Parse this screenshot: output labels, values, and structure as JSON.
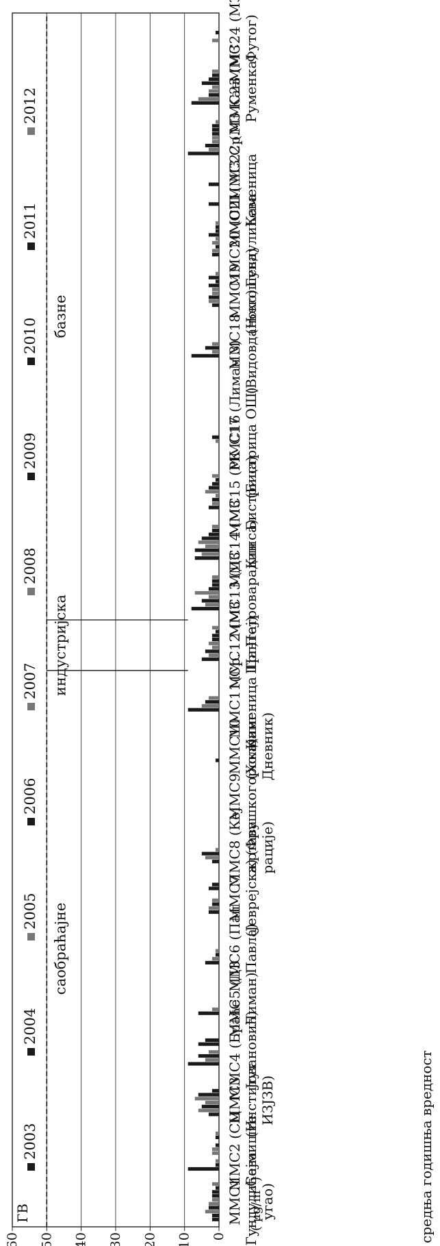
{
  "chart_data": {
    "type": "bar",
    "ylabel": "средња годишња вредност",
    "yunit": "( µg/m³ )",
    "ylim": [
      0,
      60
    ],
    "yticks": [
      0,
      10,
      20,
      30,
      40,
      50,
      60
    ],
    "grid": true,
    "legend_position": "top",
    "reference_line": {
      "label": "ГВ",
      "value": 50
    },
    "zones": [
      {
        "label": "саобраћајне",
        "from": 0,
        "to": 11
      },
      {
        "label": "индустријска",
        "from": 11,
        "to": 12
      },
      {
        "label": "базне",
        "from": 12,
        "to": 24
      }
    ],
    "categories": [
      "ММС1 (Гундулићева угао)",
      "ММС2 (СЦ Сајмиште",
      "ММС3 (Институт ИЗЈЗВ)",
      "ММС4 (Браће Јовановић)",
      "ММС5 (ДЗ Лиман)",
      "ММС6 (Пап Павла)",
      "ММС7 (Јеврејска)",
      "ММС8 (Кеј жртава рације)",
      "ММС9 (Фрушкогорска)",
      "ММС10 (Холдинг Дневник)",
      "ММС11(Ср. Каменица Трг)",
      "ММС12 (МЗ Шангај)",
      "ММС13 (ДЗ Петроварадин",
      "ММС14 (МЗ Клиса)",
      "ММС15 (РК Бистрица)",
      "ММС16 (Бистрица ОШ)",
      "С17 (Лиман 3)",
      "ММС18 (Видовданско)",
      "ММС19 (Његошева)",
      "ММС20 (ОШ Гундулићева",
      "ММС21( МЗ Ср. Каменица",
      "ММС22 (МЗ Кањ",
      "ММС23 (МЗ Руменка)",
      "ММС24 (МЗ Футог)"
    ],
    "series": [
      {
        "name": "2003",
        "color": "#1a1a1a",
        "values": [
          2,
          9,
          0,
          0,
          0,
          0,
          0,
          0,
          0,
          0,
          0,
          0,
          0,
          0,
          0,
          0,
          0,
          0,
          0,
          0,
          0,
          0,
          0,
          0
        ]
      },
      {
        "name": "2004",
        "color": "#1a1a1a",
        "values": [
          2,
          1,
          3,
          9,
          6,
          4,
          3,
          2,
          0,
          1,
          9,
          5,
          8,
          7,
          3,
          0,
          0,
          8,
          2,
          2,
          3,
          9,
          8,
          0
        ]
      },
      {
        "name": "2005",
        "color": "#777777",
        "values": [
          4,
          1,
          6,
          4,
          2,
          2,
          3,
          4,
          0,
          0,
          5,
          3,
          4,
          5,
          2,
          0,
          0,
          2,
          3,
          2,
          0,
          3,
          6,
          0
        ]
      },
      {
        "name": "2006",
        "color": "#1a1a1a",
        "values": [
          3,
          0,
          5,
          6,
          0,
          1,
          2,
          5,
          0,
          0,
          4,
          4,
          5,
          7,
          2,
          0,
          0,
          4,
          3,
          1,
          0,
          4,
          3,
          0
        ]
      },
      {
        "name": "2007",
        "color": "#777777",
        "values": [
          3,
          2,
          4,
          3,
          0,
          1,
          2,
          1,
          0,
          0,
          3,
          2,
          3,
          4,
          1,
          0,
          0,
          2,
          2,
          2,
          0,
          2,
          3,
          2
        ]
      },
      {
        "name": "2008",
        "color": "#777777",
        "values": [
          2,
          2,
          7,
          0,
          0,
          0,
          0,
          0,
          0,
          0,
          0,
          3,
          7,
          6,
          4,
          1,
          0,
          0,
          2,
          1,
          0,
          2,
          2,
          0
        ]
      },
      {
        "name": "2009",
        "color": "#1a1a1a",
        "values": [
          2,
          1,
          6,
          6,
          0,
          0,
          0,
          0,
          0,
          0,
          0,
          2,
          3,
          5,
          3,
          2,
          0,
          0,
          3,
          3,
          3,
          2,
          5,
          1
        ]
      },
      {
        "name": "2010",
        "color": "#1a1a1a",
        "values": [
          2,
          0,
          2,
          4,
          0,
          0,
          3,
          0,
          0,
          0,
          0,
          2,
          2,
          3,
          2,
          0,
          0,
          0,
          1,
          1,
          0,
          2,
          3,
          0
        ]
      },
      {
        "name": "2011",
        "color": "#1a1a1a",
        "values": [
          1,
          1,
          0,
          0,
          0,
          0,
          2,
          0,
          0,
          0,
          0,
          1,
          2,
          2,
          1,
          0,
          0,
          0,
          3,
          1,
          0,
          2,
          2,
          0
        ]
      },
      {
        "name": "2012",
        "color": "#777777",
        "values": [
          2,
          1,
          0,
          0,
          0,
          0,
          0,
          0,
          0,
          0,
          0,
          2,
          2,
          2,
          2,
          0,
          0,
          0,
          1,
          1,
          0,
          1,
          2,
          0
        ]
      }
    ]
  }
}
